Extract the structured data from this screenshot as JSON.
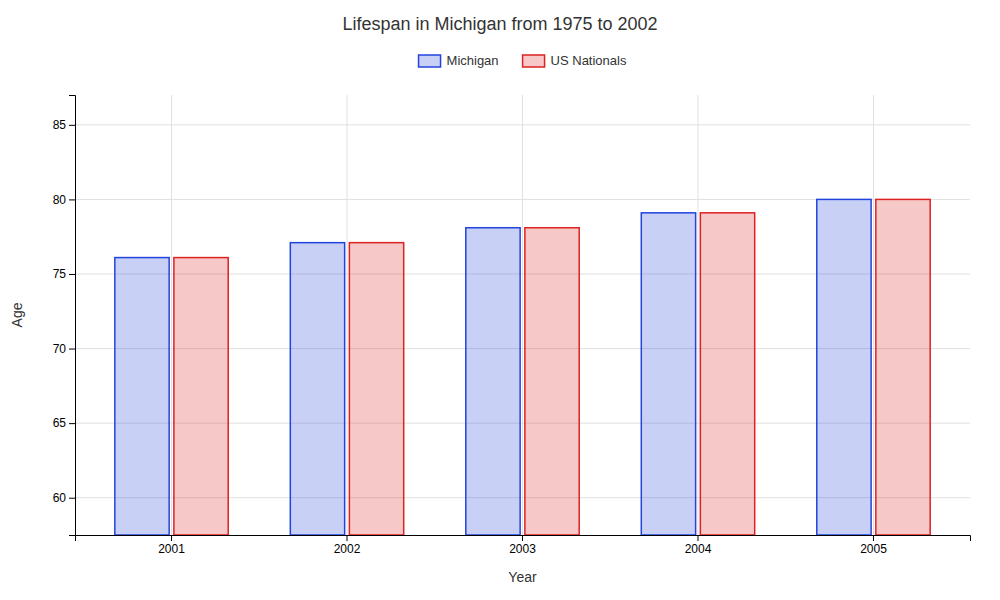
{
  "chart_data": {
    "type": "bar",
    "title": "Lifespan in Michigan from 1975 to 2002",
    "xlabel": "Year",
    "ylabel": "Age",
    "categories": [
      "2001",
      "2002",
      "2003",
      "2004",
      "2005"
    ],
    "series": [
      {
        "name": "Michigan",
        "color": "#2244dd",
        "values": [
          76.1,
          77.1,
          78.1,
          79.1,
          80.0
        ]
      },
      {
        "name": "US Nationals",
        "color": "#dd2222",
        "values": [
          76.1,
          77.1,
          78.1,
          79.1,
          80.0
        ]
      }
    ],
    "ylim": [
      57.5,
      87
    ],
    "yticks": [
      60,
      65,
      70,
      75,
      80,
      85
    ],
    "grid": true,
    "legend": "top"
  }
}
